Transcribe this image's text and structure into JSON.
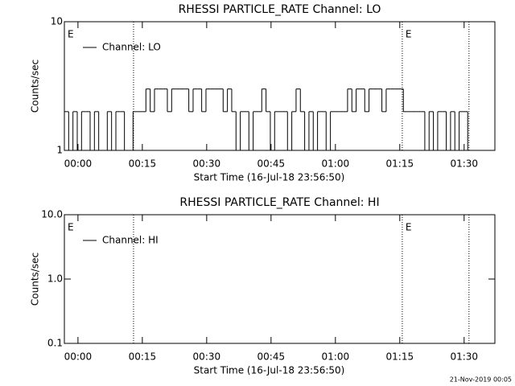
{
  "chart_data": [
    {
      "type": "line",
      "title": "RHESSI PARTICLE_RATE Channel: LO",
      "xlabel": "Start Time (16-Jul-18 23:56:50)",
      "ylabel": "Counts/sec",
      "log_y": true,
      "ylim": [
        1,
        10
      ],
      "yticks": [
        1,
        10
      ],
      "xlim": [
        0,
        6020
      ],
      "xticks": [
        {
          "value": 190,
          "label": "00:00"
        },
        {
          "value": 1090,
          "label": "00:15"
        },
        {
          "value": 1990,
          "label": "00:30"
        },
        {
          "value": 2890,
          "label": "00:45"
        },
        {
          "value": 3790,
          "label": "01:00"
        },
        {
          "value": 4690,
          "label": "01:15"
        },
        {
          "value": 5590,
          "label": "01:30"
        }
      ],
      "vlines": [
        967,
        4725,
        5658
      ],
      "markers": [
        {
          "text": "E",
          "x": 0
        },
        {
          "text": "E",
          "x": 4725
        }
      ],
      "legend": "upper left",
      "x": [
        0,
        60,
        120,
        180,
        240,
        300,
        360,
        420,
        480,
        540,
        600,
        660,
        720,
        780,
        840,
        900,
        960,
        1020,
        1080,
        1140,
        1200,
        1260,
        1320,
        1380,
        1440,
        1500,
        1560,
        1620,
        1680,
        1740,
        1800,
        1860,
        1920,
        1980,
        2040,
        2100,
        2160,
        2220,
        2280,
        2340,
        2400,
        2460,
        2520,
        2580,
        2640,
        2700,
        2760,
        2820,
        2880,
        2940,
        3000,
        3060,
        3120,
        3180,
        3240,
        3300,
        3360,
        3420,
        3480,
        3540,
        3600,
        3660,
        3720,
        3780,
        3840,
        3900,
        3960,
        4020,
        4080,
        4140,
        4200,
        4260,
        4320,
        4380,
        4440,
        4500,
        4560,
        4620,
        4680,
        4740,
        4800,
        4860,
        4920,
        4980,
        5040,
        5100,
        5160,
        5220,
        5280,
        5340,
        5400,
        5460,
        5520,
        5580,
        5640
      ],
      "series": [
        {
          "name": "Channel: LO",
          "color": "#000000",
          "values": [
            2,
            1,
            2,
            1,
            2,
            2,
            1,
            2,
            1,
            1,
            2,
            1,
            2,
            2,
            1,
            1,
            2,
            2,
            2,
            3,
            2,
            3,
            3,
            3,
            2,
            3,
            3,
            3,
            3,
            2,
            3,
            3,
            2,
            3,
            3,
            3,
            3,
            2,
            3,
            2,
            1,
            2,
            2,
            1,
            2,
            2,
            3,
            2,
            1,
            2,
            2,
            2,
            1,
            2,
            3,
            2,
            1,
            2,
            1,
            2,
            2,
            1,
            2,
            2,
            2,
            2,
            3,
            2,
            3,
            3,
            2,
            3,
            3,
            3,
            2,
            3,
            3,
            3,
            3,
            2,
            2,
            2,
            2,
            2,
            1,
            2,
            1,
            2,
            2,
            1,
            2,
            1,
            2,
            2,
            1
          ]
        }
      ]
    },
    {
      "type": "line",
      "title": "RHESSI PARTICLE_RATE Channel: HI",
      "xlabel": "Start Time (16-Jul-18 23:56:50)",
      "ylabel": "Counts/sec",
      "log_y": true,
      "ylim": [
        0.1,
        10
      ],
      "yticks": [
        0.1,
        {
          "value": 1,
          "label": "1.0"
        },
        {
          "value": 10,
          "label": "10.0"
        }
      ],
      "xlim": [
        0,
        6020
      ],
      "xticks": [
        {
          "value": 190,
          "label": "00:00"
        },
        {
          "value": 1090,
          "label": "00:15"
        },
        {
          "value": 1990,
          "label": "00:30"
        },
        {
          "value": 2890,
          "label": "00:45"
        },
        {
          "value": 3790,
          "label": "01:00"
        },
        {
          "value": 4690,
          "label": "01:15"
        },
        {
          "value": 5590,
          "label": "01:30"
        }
      ],
      "vlines": [
        967,
        4725,
        5658
      ],
      "markers": [
        {
          "text": "E",
          "x": 0
        },
        {
          "text": "E",
          "x": 4725
        }
      ],
      "legend": "upper left",
      "x": [],
      "series": [
        {
          "name": "Channel: HI",
          "color": "#000000",
          "values": []
        }
      ]
    }
  ],
  "footer": "21-Nov-2019 00:05"
}
